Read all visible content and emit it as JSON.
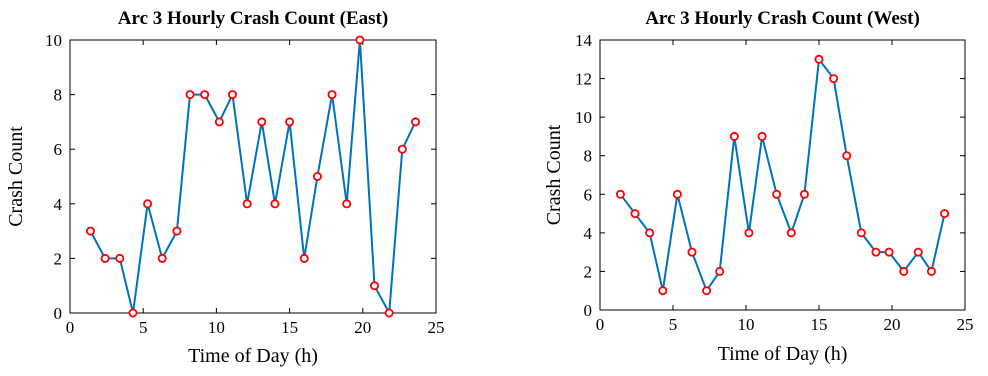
{
  "chart_data": [
    {
      "type": "line",
      "title": "Arc 3 Hourly Crash Count (East)",
      "xlabel": "Time of Day (h)",
      "ylabel": "Crash Count",
      "xlim": [
        0,
        25
      ],
      "ylim": [
        0,
        10
      ],
      "xticks": [
        0,
        5,
        10,
        15,
        20,
        25
      ],
      "yticks": [
        0,
        2,
        4,
        6,
        8,
        10
      ],
      "grid": false,
      "line_color": "#0072BD",
      "marker_color": "#FF0000",
      "x": [
        1.4,
        2.4,
        3.4,
        4.3,
        5.3,
        6.3,
        7.3,
        8.2,
        9.2,
        10.2,
        11.1,
        12.1,
        13.1,
        14.0,
        15.0,
        16.0,
        16.9,
        17.9,
        18.9,
        19.8,
        20.8,
        21.8,
        22.7,
        23.6
      ],
      "series": [
        {
          "values": [
            3,
            2,
            2,
            0,
            4,
            2,
            3,
            8,
            8,
            7,
            8,
            4,
            7,
            4,
            7,
            2,
            5,
            8,
            4,
            10,
            1,
            0,
            6,
            7
          ]
        }
      ]
    },
    {
      "type": "line",
      "title": "Arc 3 Hourly Crash Count (West)",
      "xlabel": "Time of Day (h)",
      "ylabel": "Crash Count",
      "xlim": [
        0,
        25
      ],
      "ylim": [
        0,
        14
      ],
      "xticks": [
        0,
        5,
        10,
        15,
        20,
        25
      ],
      "yticks": [
        0,
        2,
        4,
        6,
        8,
        10,
        12,
        14
      ],
      "grid": false,
      "line_color": "#0072BD",
      "marker_color": "#FF0000",
      "x": [
        1.4,
        2.4,
        3.4,
        4.3,
        5.3,
        6.3,
        7.3,
        8.2,
        9.2,
        10.2,
        11.1,
        12.1,
        13.1,
        14.0,
        15.0,
        16.0,
        16.9,
        17.9,
        18.9,
        19.8,
        20.8,
        21.8,
        22.7,
        23.6
      ],
      "series": [
        {
          "values": [
            6,
            5,
            4,
            1,
            6,
            3,
            1,
            2,
            9,
            4,
            9,
            6,
            4,
            6,
            13,
            12,
            8,
            4,
            3,
            3,
            2,
            3,
            2,
            5
          ]
        }
      ]
    }
  ]
}
